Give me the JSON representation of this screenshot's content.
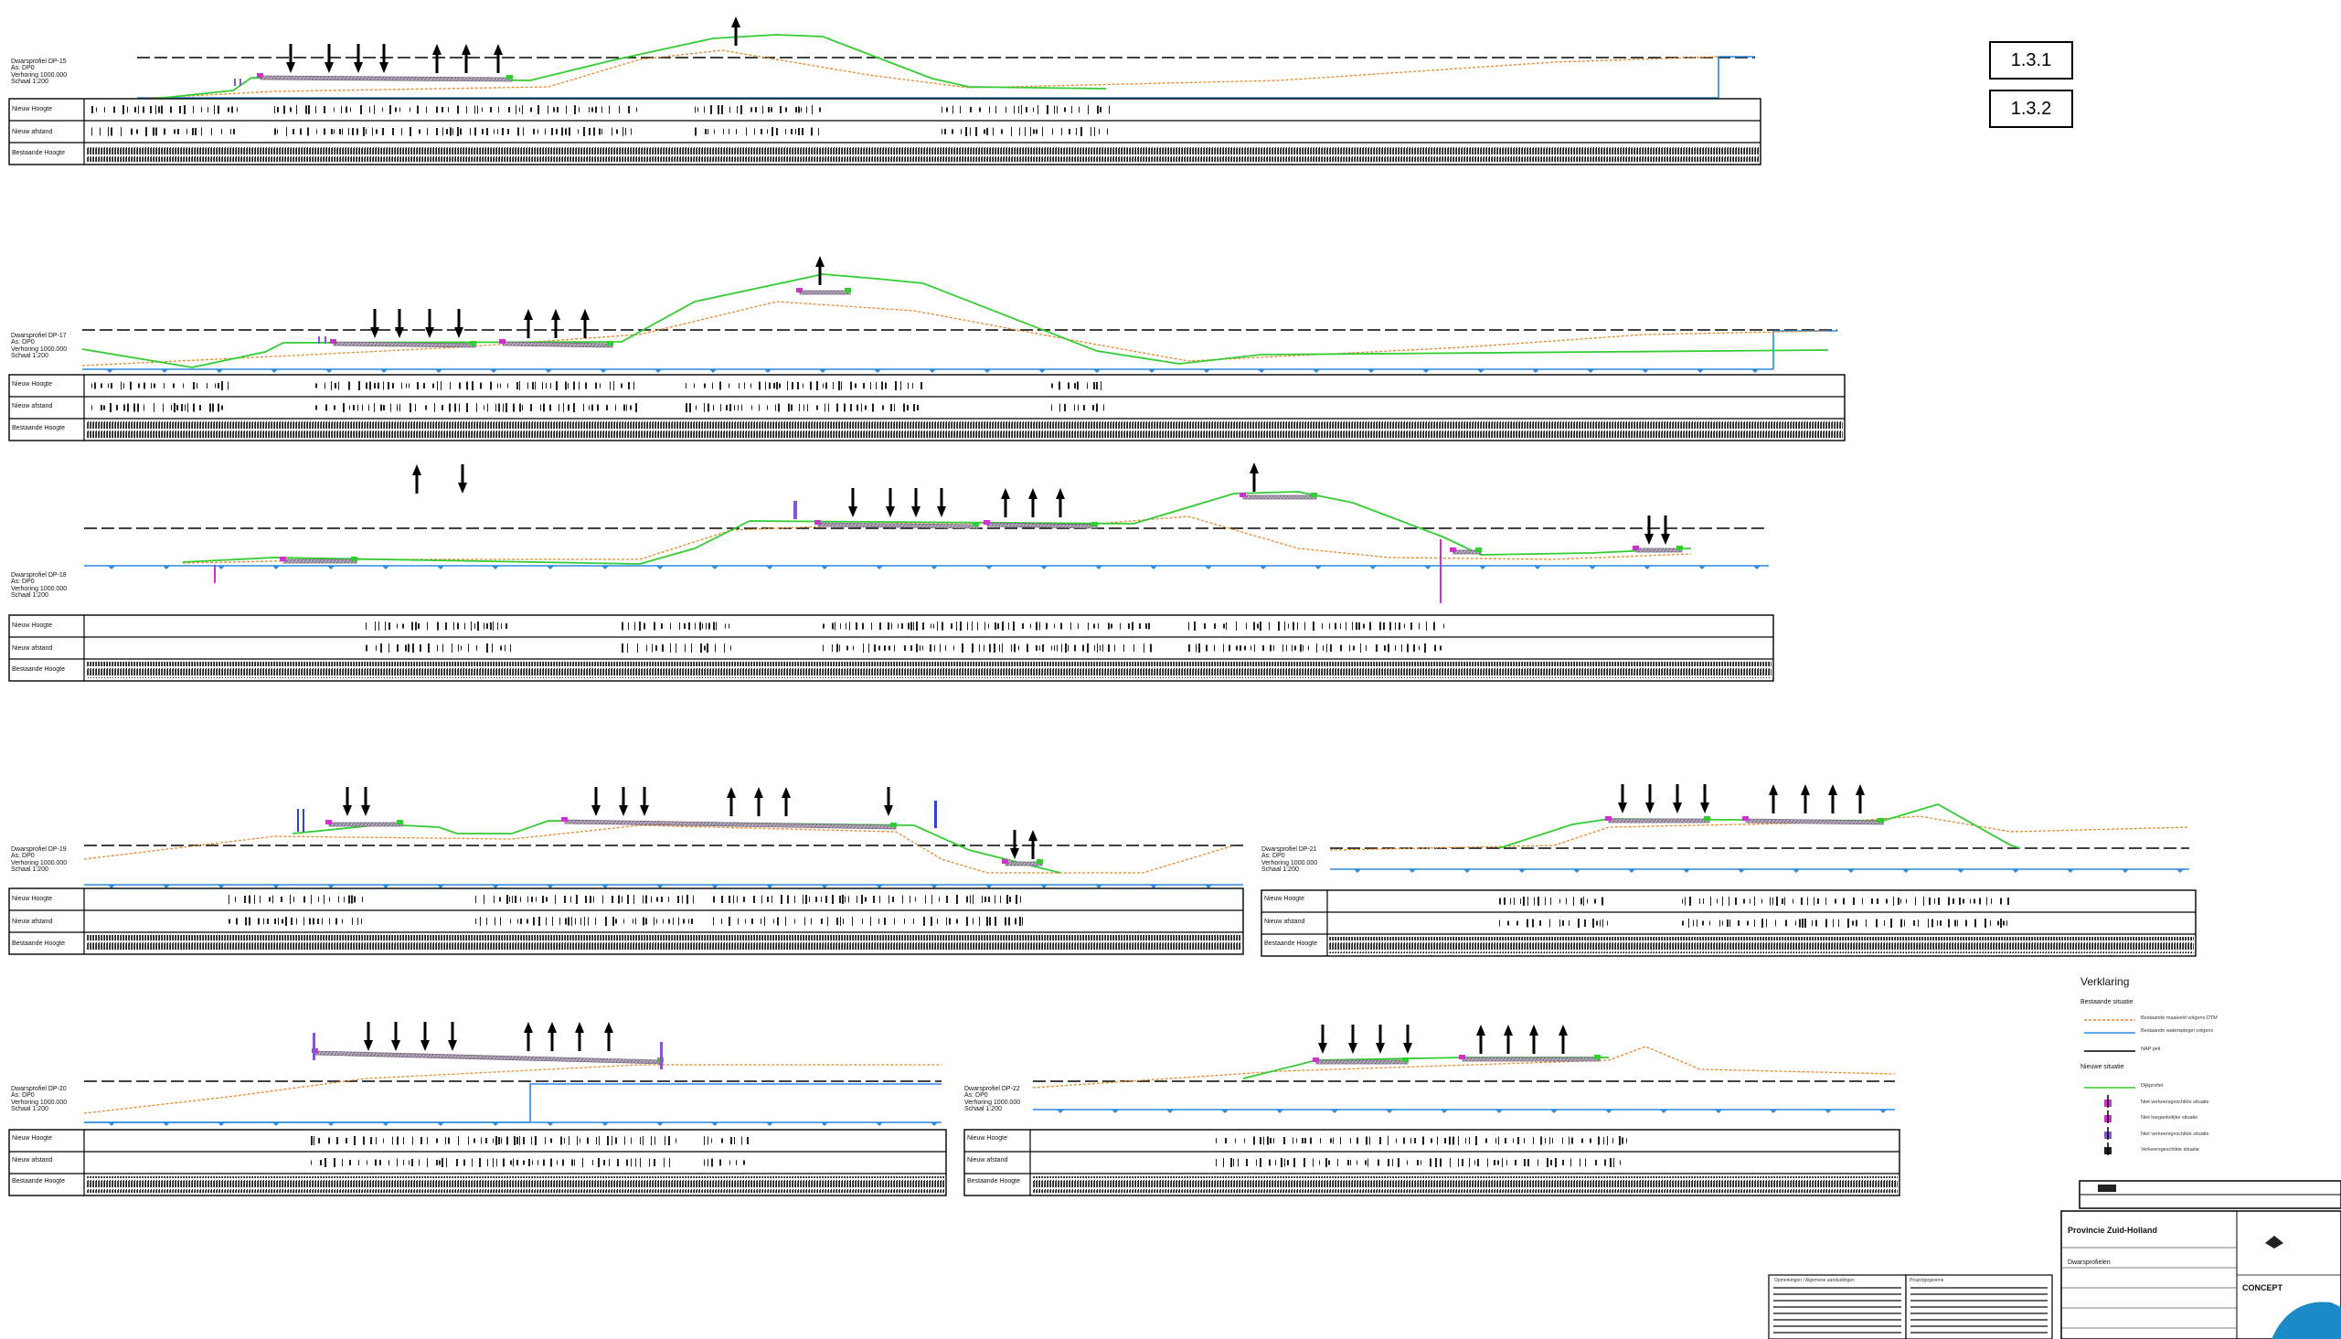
{
  "sheet_refs": [
    "1.3.1",
    "1.3.2"
  ],
  "profiles": [
    {
      "id": "p1",
      "info": [
        "Dwarsprofiel DP-15",
        "As: DP0",
        "Verhoring 1000.000",
        "Schaal 1:200"
      ],
      "rows": [
        "Nieuw Hoogte",
        "Nieuw afstand",
        "Bestaande Hoogte"
      ]
    },
    {
      "id": "p2",
      "info": [
        "Dwarsprofiel DP-17",
        "As: DP0",
        "Verhoring 1000.000",
        "Schaal 1:200"
      ],
      "rows": [
        "Nieuw Hoogte",
        "Nieuw afstand",
        "Bestaande Hoogte"
      ]
    },
    {
      "id": "p3",
      "info": [
        "Dwarsprofiel DP-18",
        "As: DP0",
        "Verhoring 1000.000",
        "Schaal 1:200"
      ],
      "rows": [
        "Nieuw Hoogte",
        "Nieuw afstand",
        "Bestaande Hoogte"
      ]
    },
    {
      "id": "p4",
      "info": [
        "Dwarsprofiel DP-19",
        "As: DP0",
        "Verhoring 1000.000",
        "Schaal 1:200"
      ],
      "rows": [
        "Nieuw Hoogte",
        "Nieuw afstand",
        "Bestaande Hoogte"
      ]
    },
    {
      "id": "p5",
      "info": [
        "Dwarsprofiel DP-21",
        "As: DP0",
        "Verhoring 1000.000",
        "Schaal 1:200"
      ],
      "rows": [
        "Nieuw Hoogte",
        "Nieuw afstand",
        "Bestaande Hoogte"
      ]
    },
    {
      "id": "p6",
      "info": [
        "Dwarsprofiel DP-20",
        "As: DP0",
        "Verhoring 1000.000",
        "Schaal 1:200"
      ],
      "rows": [
        "Nieuw Hoogte",
        "Nieuw afstand",
        "Bestaande Hoogte"
      ]
    },
    {
      "id": "p7",
      "info": [
        "Dwarsprofiel DP-22",
        "As: DP0",
        "Verhoring 1000.000",
        "Schaal 1:200"
      ],
      "rows": [
        "Nieuw Hoogte",
        "Nieuw afstand",
        "Bestaande Hoogte"
      ]
    }
  ],
  "legend": {
    "title": "Verklaring",
    "existing_header": "Bestaande situatie",
    "new_header": "Nieuwe situatie",
    "items": [
      "Bestaande maaiveld volgens DTM",
      "Bestaande waterspiegel volgens",
      "NAP peil",
      "Dijkprofiel",
      "Niet verkeersgeschikte situatie",
      "Niet toegankelijke situatie",
      "Niet verkeersgeschikte situatie",
      "Verkeersgeschikte situatie"
    ]
  },
  "title_block": {
    "client": "Provincie Zuid-Holland",
    "project": "Dwarsprofielen",
    "status": "CONCEPT",
    "notes_header": "Opmerkingen / Algemene aanduidingen",
    "info_header": "Projectgegevens"
  },
  "colors": {
    "ground_new": "#33cc33",
    "ground_existing": "#e8872a",
    "water": "#2a8ae0",
    "reference": "#000000",
    "marker": "#cc33cc",
    "structure": "#7a6a80",
    "logo": "#1d8ac8"
  }
}
